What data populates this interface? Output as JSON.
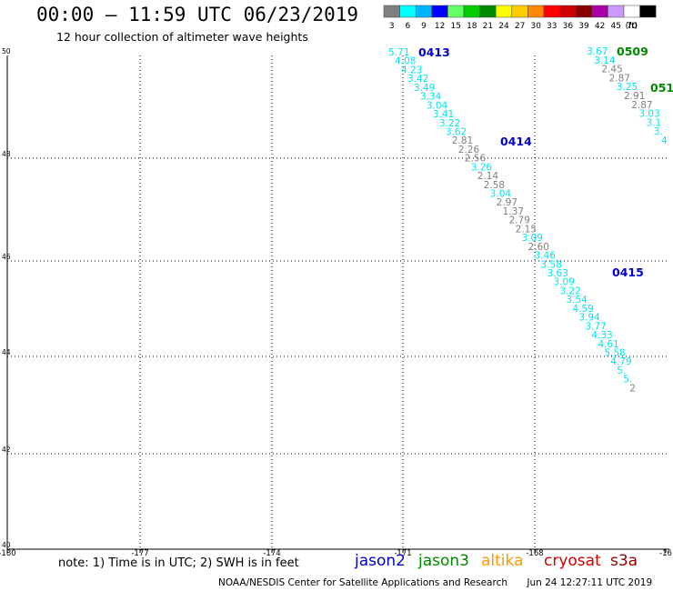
{
  "header": {
    "title": "00:00 – 11:59 UTC 06/23/2019",
    "subtitle": "12 hour collection of altimeter wave heights"
  },
  "legend": {
    "unit_label": "(ft)",
    "bins": [
      {
        "label": "3",
        "color": "#7f7f7f"
      },
      {
        "label": "6",
        "color": "#00ffff"
      },
      {
        "label": "9",
        "color": "#00b4ff"
      },
      {
        "label": "12",
        "color": "#0000ff"
      },
      {
        "label": "15",
        "color": "#66ff66"
      },
      {
        "label": "18",
        "color": "#00cc00"
      },
      {
        "label": "21",
        "color": "#008800"
      },
      {
        "label": "24",
        "color": "#ffff00"
      },
      {
        "label": "27",
        "color": "#ffcc00"
      },
      {
        "label": "30",
        "color": "#ff8800"
      },
      {
        "label": "33",
        "color": "#ff0000"
      },
      {
        "label": "36",
        "color": "#cc0000"
      },
      {
        "label": "39",
        "color": "#880000"
      },
      {
        "label": "42",
        "color": "#aa00aa"
      },
      {
        "label": "45",
        "color": "#cc99ff"
      },
      {
        "label": "70",
        "color": "#ffffff"
      },
      {
        "label": "",
        "color": "#000000"
      }
    ]
  },
  "map": {
    "lon_ticks": [
      "-180",
      "-177",
      "-174",
      "-171",
      "-168",
      "-16"
    ],
    "lat_ticks": [
      "50",
      "48",
      "46",
      "44",
      "42",
      "40"
    ]
  },
  "passes": [
    {
      "label": "0413",
      "color": "#0000cc"
    },
    {
      "label": "0414",
      "color": "#0000cc"
    },
    {
      "label": "0415",
      "color": "#0000cc"
    },
    {
      "label": "0509",
      "color": "#008800"
    },
    {
      "label": "051",
      "color": "#008800"
    }
  ],
  "tracks": [
    {
      "name": "jason2 pass 0413-0415",
      "values": [
        "5.71",
        "4.08",
        "4.23",
        "3.42",
        "3.49",
        "3.34",
        "3.04",
        "3.41",
        "3.22",
        "3.62",
        "2.81",
        "2.26",
        "2.56",
        "3.26",
        "2.14",
        "2.58",
        "3.04",
        "2.97",
        "1.37",
        "2.79",
        "2.15",
        "3.09",
        "2.60",
        "3.46",
        "3.58",
        "3.63",
        "3.09",
        "3.22",
        "3.54",
        "4.59",
        "3.94",
        "3.77",
        "4.33",
        "4.61",
        "5.58",
        "4.79",
        "5.",
        "5.",
        "2"
      ]
    },
    {
      "name": "jason3 pass 0509-051",
      "values": [
        "3.67",
        "3.14",
        "2.45",
        "2.87",
        "3.25",
        "2.91",
        "2.87",
        "3.03",
        "3.1",
        "3.",
        "4"
      ]
    }
  ],
  "note": "note: 1) Time is in UTC; 2) SWH is in feet",
  "satellites": [
    {
      "label": "jason2",
      "color": "#0000cc"
    },
    {
      "label": "jason3",
      "color": "#008800"
    },
    {
      "label": "altika",
      "color": "#ff9900"
    },
    {
      "label": "cryosat",
      "color": "#cc0000"
    },
    {
      "label": "s3a",
      "color": "#880000"
    }
  ],
  "credit": {
    "org": "NOAA/NESDIS Center for Satellite Applications and Research",
    "timestamp": "Jun 24 12:27:11 UTC 2019"
  }
}
